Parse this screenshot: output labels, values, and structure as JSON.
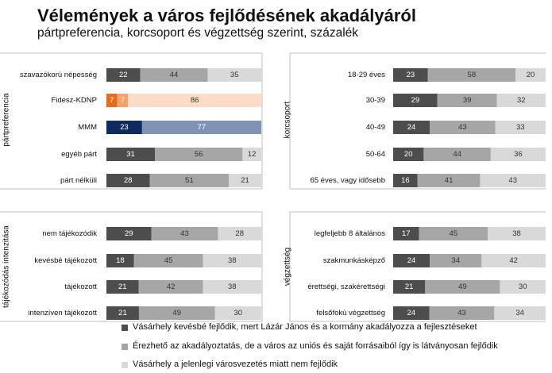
{
  "title": "Vélemények a város fejlődésének akadályáról",
  "subtitle": "pártpreferencia, korcsoport és végzettség szerint, százalék",
  "colors": {
    "dark": "#4d4d4d",
    "mid": "#a6a6a6",
    "light": "#d9d9d9",
    "fidesz_dark": "#e46c1e",
    "fidesz_mid": "#f2a36b",
    "fidesz_light": "#fbdcc6",
    "mmm_dark": "#0f2a5e",
    "mmm_mid": "#7f93b4"
  },
  "legend": [
    "Vásárhely kevésbé fejlődik, mert Lázár János és a kormány akadályozza a fejlesztéseket",
    "Érezhető az akadályoztatás, de a város az uniós és saját forrásaiból így is látványosan fejlődik",
    "Vásárhely a jelenlegi városvezetés miatt nem fejlődik"
  ],
  "chart_data": [
    {
      "type": "bar",
      "stacked": true,
      "orientation": "horizontal",
      "group": "pártpreferencia",
      "categories": [
        "szavazókorú népesség",
        "Fidesz-KDNP",
        "MMM",
        "egyéb párt",
        "párt nélküli"
      ],
      "series": [
        {
          "values": [
            22,
            7,
            23,
            31,
            28
          ]
        },
        {
          "values": [
            44,
            7,
            77,
            56,
            51
          ]
        },
        {
          "values": [
            35,
            86,
            0,
            12,
            21
          ]
        }
      ]
    },
    {
      "type": "bar",
      "stacked": true,
      "orientation": "horizontal",
      "group": "korcsoport",
      "categories": [
        "18-29 éves",
        "30-39",
        "40-49",
        "50-64",
        "65 éves, vagy idősebb"
      ],
      "series": [
        {
          "values": [
            23,
            29,
            24,
            20,
            16
          ]
        },
        {
          "values": [
            58,
            39,
            43,
            44,
            41
          ]
        },
        {
          "values": [
            20,
            32,
            33,
            36,
            43
          ]
        }
      ]
    },
    {
      "type": "bar",
      "stacked": true,
      "orientation": "horizontal",
      "group": "tájékozódás intenzitása",
      "categories": [
        "nem tájékozódik",
        "kevésbé tájékozott",
        "tájékozott",
        "intenzíven tájékozott"
      ],
      "series": [
        {
          "values": [
            29,
            18,
            21,
            21
          ]
        },
        {
          "values": [
            43,
            45,
            42,
            49
          ]
        },
        {
          "values": [
            28,
            38,
            38,
            30
          ]
        }
      ]
    },
    {
      "type": "bar",
      "stacked": true,
      "orientation": "horizontal",
      "group": "végzettség",
      "categories": [
        "legfeljebb 8 általános",
        "szakmunkásképző",
        "érettségi, szakérettségi",
        "felsőfokú végzettség"
      ],
      "series": [
        {
          "values": [
            17,
            24,
            21,
            24
          ]
        },
        {
          "values": [
            45,
            34,
            49,
            43
          ]
        },
        {
          "values": [
            38,
            42,
            30,
            34
          ]
        }
      ]
    }
  ]
}
